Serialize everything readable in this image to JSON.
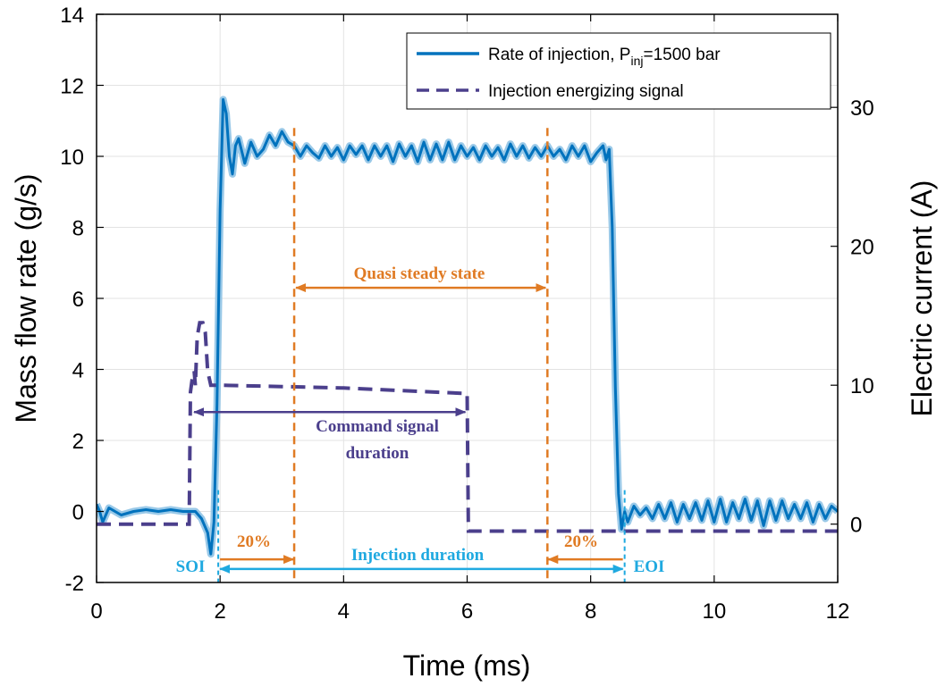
{
  "chart_data": {
    "type": "line",
    "title": "",
    "xlabel": "Time (ms)",
    "ylabel": "Mass flow rate (g/s)",
    "y2label": "Electric current (A)",
    "xlim": [
      0,
      12
    ],
    "ylim": [
      -2,
      14
    ],
    "y2lim": [
      -4.2,
      36.7
    ],
    "xticks": [
      "0",
      "2",
      "4",
      "6",
      "8",
      "10",
      "12"
    ],
    "yticks": [
      "-2",
      "0",
      "2",
      "4",
      "6",
      "8",
      "10",
      "12",
      "14"
    ],
    "y2ticks": [
      "0",
      "10",
      "20",
      "30"
    ],
    "grid": true,
    "legend_position": "top-right",
    "colors": {
      "rate": "#0072bd",
      "rate_band": "#8fc3e6",
      "signal": "#4b3f8c",
      "orange": "#e07b24",
      "cyan": "#1fa9e0"
    },
    "legend": {
      "rate_prefix": "Rate of injection, P",
      "rate_sub": "inj",
      "rate_suffix": "=1500 bar",
      "signal": "Injection energizing signal"
    },
    "series": [
      {
        "name": "Rate of injection, Pinj=1500 bar",
        "axis": "left",
        "style": "solid",
        "x": [
          0.0,
          0.05,
          0.1,
          0.2,
          0.3,
          0.4,
          0.6,
          0.8,
          1.0,
          1.2,
          1.4,
          1.6,
          1.7,
          1.8,
          1.85,
          1.9,
          1.95,
          2.0,
          2.05,
          2.1,
          2.15,
          2.2,
          2.25,
          2.3,
          2.4,
          2.5,
          2.6,
          2.7,
          2.8,
          2.9,
          3.0,
          3.1,
          3.2,
          3.3,
          3.4,
          3.5,
          3.6,
          3.7,
          3.8,
          3.9,
          4.0,
          4.1,
          4.2,
          4.3,
          4.4,
          4.5,
          4.6,
          4.7,
          4.8,
          4.9,
          5.0,
          5.1,
          5.2,
          5.3,
          5.4,
          5.5,
          5.6,
          5.7,
          5.8,
          5.9,
          6.0,
          6.1,
          6.2,
          6.3,
          6.4,
          6.5,
          6.6,
          6.7,
          6.8,
          6.9,
          7.0,
          7.1,
          7.2,
          7.3,
          7.4,
          7.5,
          7.6,
          7.7,
          7.8,
          7.9,
          8.0,
          8.1,
          8.2,
          8.25,
          8.3,
          8.35,
          8.4,
          8.45,
          8.5,
          8.55,
          8.6,
          8.7,
          8.8,
          8.9,
          9.0,
          9.1,
          9.2,
          9.3,
          9.4,
          9.5,
          9.6,
          9.7,
          9.8,
          9.9,
          10.0,
          10.1,
          10.2,
          10.3,
          10.4,
          10.5,
          10.6,
          10.7,
          10.8,
          10.9,
          11.0,
          11.1,
          11.2,
          11.3,
          11.4,
          11.5,
          11.6,
          11.7,
          11.8,
          11.9,
          12.0
        ],
        "y": [
          0.2,
          0.0,
          -0.3,
          0.1,
          0.0,
          -0.1,
          0.0,
          0.05,
          0.0,
          0.05,
          0.0,
          0.0,
          -0.2,
          -0.6,
          -1.2,
          -0.3,
          3.0,
          8.5,
          11.6,
          11.2,
          10.0,
          9.5,
          10.3,
          10.5,
          9.8,
          10.4,
          10.0,
          10.2,
          10.6,
          10.3,
          10.7,
          10.4,
          10.3,
          10.0,
          10.3,
          10.1,
          9.95,
          10.3,
          10.0,
          10.25,
          9.9,
          10.3,
          10.05,
          10.3,
          9.9,
          10.3,
          10.0,
          10.3,
          9.85,
          10.35,
          10.0,
          10.3,
          9.85,
          10.4,
          9.9,
          10.35,
          9.9,
          10.4,
          9.9,
          10.3,
          10.0,
          10.25,
          9.9,
          10.3,
          10.0,
          10.25,
          9.9,
          10.35,
          10.0,
          10.3,
          9.95,
          10.25,
          10.0,
          10.3,
          10.0,
          10.2,
          9.9,
          10.3,
          10.0,
          10.3,
          9.85,
          10.1,
          10.3,
          9.9,
          10.2,
          8.0,
          3.5,
          0.5,
          -0.5,
          0.0,
          -0.3,
          0.15,
          -0.1,
          0.1,
          -0.2,
          0.2,
          -0.2,
          0.25,
          -0.3,
          0.2,
          -0.2,
          0.25,
          -0.25,
          0.3,
          -0.3,
          0.35,
          -0.3,
          0.25,
          -0.2,
          0.35,
          -0.25,
          0.3,
          -0.4,
          0.3,
          -0.25,
          0.3,
          -0.2,
          0.2,
          -0.2,
          0.25,
          -0.3,
          0.2,
          -0.2,
          0.15,
          0.0
        ]
      },
      {
        "name": "Injection energizing signal",
        "axis": "right",
        "style": "dashed",
        "x": [
          0.0,
          1.5,
          1.52,
          1.55,
          1.58,
          1.6,
          1.63,
          1.67,
          1.72,
          1.76,
          1.8,
          1.85,
          2.0,
          3.0,
          4.0,
          5.0,
          6.0,
          6.02,
          12.0
        ],
        "y": [
          0.0,
          0.0,
          9.5,
          10.5,
          11.0,
          10.0,
          13.5,
          14.5,
          14.5,
          13.8,
          11.0,
          10.0,
          10.0,
          9.9,
          9.8,
          9.6,
          9.4,
          -0.5,
          -0.5
        ]
      }
    ],
    "annotations": {
      "quasi": "Quasi steady state",
      "command_line1": "Command signal",
      "command_line2": "duration",
      "pct_left": "20%",
      "pct_right": "20%",
      "injection": "Injection duration",
      "soi": "SOI",
      "eoi": "EOI"
    },
    "markers_x": {
      "soi": 1.97,
      "eoi": 8.55,
      "quasi_start": 3.2,
      "quasi_end": 7.3,
      "command_start": 1.55,
      "command_end": 6.0
    }
  }
}
